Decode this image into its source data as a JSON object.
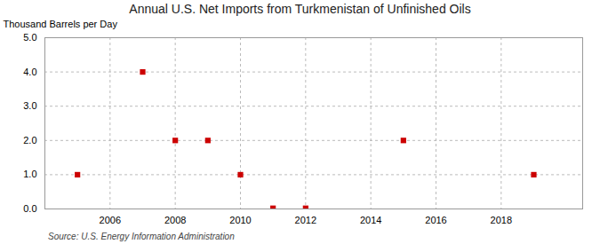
{
  "chart_data": {
    "type": "scatter",
    "title": "Annual U.S. Net Imports from Turkmenistan of Unfinished Oils",
    "ylabel": "Thousand Barrels per Day",
    "source": "Source: U.S. Energy Information Administration",
    "x": [
      2005,
      2007,
      2008,
      2009,
      2010,
      2011,
      2012,
      2015,
      2019
    ],
    "values": [
      1.0,
      4.0,
      2.0,
      2.0,
      1.0,
      0.02,
      0.02,
      2.0,
      1.0
    ],
    "color": "#cc0000",
    "marker": "square",
    "xlim": [
      2004.0,
      2020.5
    ],
    "ylim": [
      0.0,
      5.0
    ],
    "xticks": [
      2006,
      2008,
      2010,
      2012,
      2014,
      2016,
      2018
    ],
    "yticks": [
      {
        "value": 0.0,
        "label": "0.0"
      },
      {
        "value": 1.0,
        "label": "1.0"
      },
      {
        "value": 2.0,
        "label": "2.0"
      },
      {
        "value": 3.0,
        "label": "3.0"
      },
      {
        "value": 4.0,
        "label": "4.0"
      },
      {
        "value": 5.0,
        "label": "5.0"
      }
    ],
    "grid": true
  }
}
